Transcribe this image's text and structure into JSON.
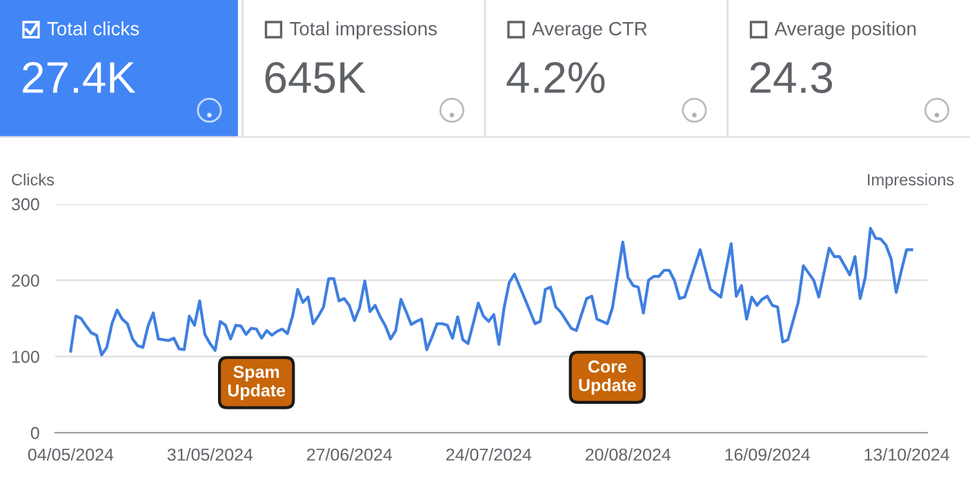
{
  "chart_data": [
    {
      "type": "other",
      "annotations": [
        "Total clicks",
        "27.4K",
        "Total impressions",
        "645K",
        "Average CTR",
        "4.2%",
        "Average position",
        "24.3"
      ]
    },
    {
      "type": "line",
      "ylabel": "Clicks",
      "y2label": "Impressions",
      "series": [
        {
          "color": "#3f7fe0",
          "x": [
            "2024-05-04",
            "2024-05-05",
            "2024-05-06",
            "2024-05-07",
            "2024-05-08",
            "2024-05-09",
            "2024-05-10",
            "2024-05-11",
            "2024-05-12",
            "2024-05-13",
            "2024-05-14",
            "2024-05-15",
            "2024-05-16",
            "2024-05-17",
            "2024-05-18",
            "2024-05-19",
            "2024-05-20",
            "2024-05-21",
            "2024-05-22",
            "2024-05-23",
            "2024-05-24",
            "2024-05-25",
            "2024-05-26",
            "2024-05-27",
            "2024-05-28",
            "2024-05-29",
            "2024-05-30",
            "2024-05-31",
            "2024-06-01",
            "2024-06-02",
            "2024-06-03",
            "2024-06-04",
            "2024-06-05",
            "2024-06-06",
            "2024-06-07",
            "2024-06-08",
            "2024-06-09",
            "2024-06-10",
            "2024-06-11",
            "2024-06-12",
            "2024-06-13",
            "2024-06-14",
            "2024-06-15",
            "2024-06-16",
            "2024-06-17",
            "2024-06-18",
            "2024-06-19",
            "2024-06-20",
            "2024-06-21",
            "2024-06-22",
            "2024-06-23",
            "2024-06-24",
            "2024-06-25",
            "2024-06-26",
            "2024-06-27",
            "2024-06-28",
            "2024-06-29",
            "2024-06-30",
            "2024-07-01",
            "2024-07-02",
            "2024-07-03",
            "2024-07-04",
            "2024-07-05",
            "2024-07-06",
            "2024-07-07",
            "2024-07-08",
            "2024-07-09",
            "2024-07-10",
            "2024-07-11",
            "2024-07-12",
            "2024-07-13",
            "2024-07-14",
            "2024-07-15",
            "2024-07-16",
            "2024-07-17",
            "2024-07-18",
            "2024-07-19",
            "2024-07-20",
            "2024-07-21",
            "2024-07-22",
            "2024-07-23",
            "2024-07-24",
            "2024-07-25",
            "2024-07-26",
            "2024-07-27",
            "2024-07-28",
            "2024-07-29",
            "2024-07-31",
            "2024-08-02",
            "2024-08-03",
            "2024-08-04",
            "2024-08-05",
            "2024-08-06",
            "2024-08-07",
            "2024-08-09",
            "2024-08-10",
            "2024-08-12",
            "2024-08-13",
            "2024-08-14",
            "2024-08-15",
            "2024-08-16",
            "2024-08-17",
            "2024-08-19",
            "2024-08-20",
            "2024-08-21",
            "2024-08-22",
            "2024-08-23",
            "2024-08-24",
            "2024-08-25",
            "2024-08-26",
            "2024-08-27",
            "2024-08-28",
            "2024-08-29",
            "2024-08-30",
            "2024-08-31",
            "2024-09-03",
            "2024-09-05",
            "2024-09-07",
            "2024-09-09",
            "2024-09-10",
            "2024-09-11",
            "2024-09-12",
            "2024-09-13",
            "2024-09-14",
            "2024-09-15",
            "2024-09-16",
            "2024-09-17",
            "2024-09-18",
            "2024-09-19",
            "2024-09-20",
            "2024-09-22",
            "2024-09-23",
            "2024-09-25",
            "2024-09-26",
            "2024-09-28",
            "2024-09-29",
            "2024-09-30",
            "2024-10-02",
            "2024-10-03",
            "2024-10-04",
            "2024-10-05",
            "2024-10-06",
            "2024-10-07",
            "2024-10-08",
            "2024-10-09",
            "2024-10-10",
            "2024-10-11",
            "2024-10-12",
            "2024-10-13",
            "2024-10-14"
          ],
          "values": [
            107,
            153,
            150,
            140,
            131,
            128,
            102,
            112,
            143,
            161,
            149,
            143,
            123,
            114,
            112,
            140,
            157,
            123,
            122,
            121,
            124,
            110,
            109,
            153,
            141,
            173,
            129,
            117,
            108,
            146,
            141,
            123,
            141,
            140,
            129,
            137,
            136,
            124,
            134,
            128,
            133,
            136,
            130,
            153,
            188,
            171,
            178,
            143,
            153,
            165,
            202,
            202,
            173,
            176,
            167,
            147,
            164,
            199,
            159,
            167,
            152,
            140,
            123,
            134,
            175,
            159,
            142,
            146,
            149,
            109,
            125,
            143,
            143,
            141,
            124,
            152,
            122,
            117,
            143,
            170,
            153,
            146,
            155,
            116,
            164,
            197,
            208,
            176,
            143,
            146,
            188,
            191,
            165,
            158,
            137,
            134,
            176,
            179,
            149,
            146,
            143,
            164,
            250,
            204,
            193,
            191,
            157,
            200,
            205,
            205,
            213,
            213,
            200,
            176,
            178,
            240,
            188,
            178,
            248,
            179,
            193,
            149,
            178,
            167,
            175,
            179,
            167,
            165,
            119,
            122,
            171,
            219,
            200,
            178,
            242,
            231,
            231,
            207,
            231,
            176,
            204,
            268,
            255,
            254,
            246,
            228,
            184,
            213,
            240,
            240
          ]
        }
      ],
      "xlim": [
        "2024-05-01",
        "2024-10-17"
      ],
      "xticks": [
        {
          "value": "2024-05-04",
          "label": "04/05/2024"
        },
        {
          "value": "2024-05-31",
          "label": "31/05/2024"
        },
        {
          "value": "2024-06-27",
          "label": "27/06/2024"
        },
        {
          "value": "2024-07-24",
          "label": "24/07/2024"
        },
        {
          "value": "2024-08-20",
          "label": "20/08/2024"
        },
        {
          "value": "2024-09-16",
          "label": "16/09/2024"
        },
        {
          "value": "2024-10-13",
          "label": "13/10/2024"
        }
      ],
      "ylim": [
        0,
        300
      ],
      "yticks": [
        0,
        100,
        200,
        300
      ],
      "grid": "y",
      "line_style": "solid",
      "annotations": [
        {
          "text": "Spam\nUpdate",
          "x": "2024-06-09",
          "y": 136
        },
        {
          "text": "Core\nUpdate",
          "x": "2024-08-16",
          "y": 143
        }
      ]
    }
  ]
}
